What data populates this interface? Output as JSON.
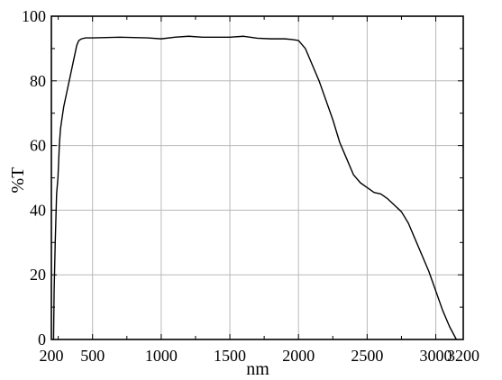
{
  "chart_data": {
    "type": "line",
    "title": "",
    "xlabel": "nm",
    "ylabel": "%T",
    "xlim": [
      200,
      3200
    ],
    "ylim": [
      0,
      100
    ],
    "grid": true,
    "legend": "none",
    "x_ticks": [
      200,
      500,
      1000,
      1500,
      2000,
      2500,
      3000,
      3200
    ],
    "y_ticks": [
      0,
      20,
      40,
      60,
      80,
      100
    ],
    "x_tick_labels": [
      "200",
      "500",
      "1000",
      "1500",
      "2000",
      "2500",
      "3000",
      "3200"
    ],
    "y_tick_labels": [
      "0",
      "20",
      "40",
      "60",
      "80",
      "100"
    ],
    "series": [
      {
        "line_color": "#000000",
        "points": [
          [
            216,
            0
          ],
          [
            220,
            15
          ],
          [
            228,
            30
          ],
          [
            238,
            45
          ],
          [
            248,
            50
          ],
          [
            258,
            60
          ],
          [
            266,
            65
          ],
          [
            276,
            68
          ],
          [
            290,
            72
          ],
          [
            310,
            76
          ],
          [
            330,
            80
          ],
          [
            350,
            84
          ],
          [
            370,
            88
          ],
          [
            385,
            91
          ],
          [
            400,
            92.5
          ],
          [
            420,
            93
          ],
          [
            450,
            93.3
          ],
          [
            500,
            93.3
          ],
          [
            700,
            93.5
          ],
          [
            900,
            93.3
          ],
          [
            1000,
            93
          ],
          [
            1100,
            93.5
          ],
          [
            1200,
            93.8
          ],
          [
            1300,
            93.5
          ],
          [
            1400,
            93.5
          ],
          [
            1500,
            93.5
          ],
          [
            1600,
            93.8
          ],
          [
            1700,
            93.2
          ],
          [
            1800,
            93
          ],
          [
            1900,
            93
          ],
          [
            1950,
            92.8
          ],
          [
            2000,
            92.5
          ],
          [
            2050,
            90
          ],
          [
            2100,
            85
          ],
          [
            2150,
            80
          ],
          [
            2200,
            74
          ],
          [
            2250,
            68
          ],
          [
            2300,
            61
          ],
          [
            2350,
            56
          ],
          [
            2400,
            51
          ],
          [
            2450,
            48.5
          ],
          [
            2500,
            47
          ],
          [
            2550,
            45.5
          ],
          [
            2600,
            45
          ],
          [
            2650,
            43.5
          ],
          [
            2700,
            41.5
          ],
          [
            2750,
            39.5
          ],
          [
            2800,
            36
          ],
          [
            2850,
            31
          ],
          [
            2900,
            26
          ],
          [
            2950,
            21
          ],
          [
            3000,
            15
          ],
          [
            3050,
            9
          ],
          [
            3100,
            4
          ],
          [
            3150,
            0
          ]
        ]
      }
    ]
  }
}
